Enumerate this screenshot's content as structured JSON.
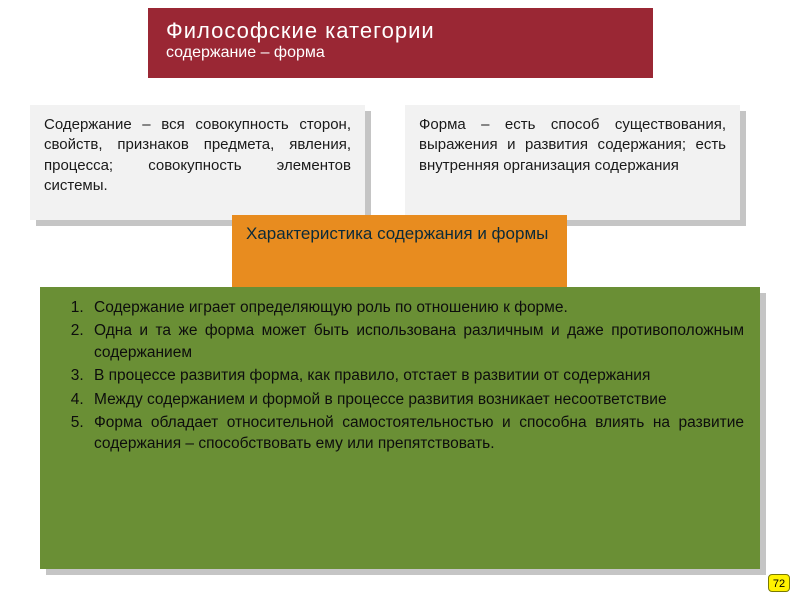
{
  "colors": {
    "header_bg": "#9a2734",
    "header_text": "#ffffff",
    "def_bg": "#f2f2f2",
    "shadow_bg": "#c5c5c5",
    "def_text": "#1a1a1a",
    "char_bg": "#e88c1f",
    "char_text": "#0a2a3a",
    "list_bg": "#6a8f35",
    "list_text": "#0d0d0d",
    "badge_bg": "#fff200",
    "badge_border": "#7a7a00",
    "badge_text": "#000000"
  },
  "header": {
    "title": "Философские категории",
    "subtitle": "содержание – форма"
  },
  "definitions": {
    "left": {
      "term": "Содержание",
      "body": " – вся совокупность сторон, свойств, признаков предмета, явления, процесса; совокупность элементов системы."
    },
    "right": {
      "term": "Форма",
      "body": " – есть способ существования, выражения и развития содержания; есть внутренняя организация содержания"
    }
  },
  "characteristic_label": "Характеристика содержания и формы",
  "list_items": [
    "Содержание играет определяющую роль по отношению к форме.",
    "Одна и та же форма может быть использована различным и даже противоположным содержанием",
    "В процессе развития форма, как правило, отстает в развитии от содержания",
    "Между содержанием и формой в процессе развития возникает несоответствие",
    "Форма обладает относительной самостоятельностью и способна влиять на развитие содержания – способствовать ему или препятствовать."
  ],
  "page_number": "72"
}
